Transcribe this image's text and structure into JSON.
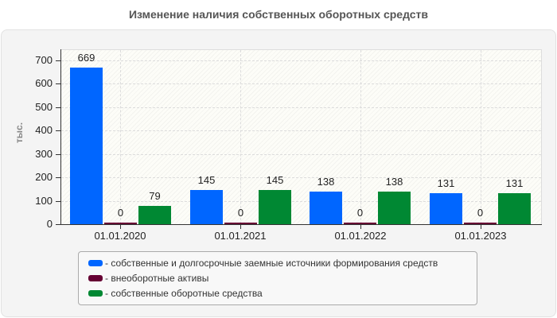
{
  "title": "Изменение наличия собственных оборотных средств",
  "chart_data": {
    "type": "bar",
    "title": "Изменение наличия собственных оборотных средств",
    "xlabel": "",
    "ylabel": "тыс.",
    "ylim": [
      0,
      750
    ],
    "yticks": [
      0,
      100,
      200,
      300,
      400,
      500,
      600,
      700
    ],
    "categories": [
      "01.01.2020",
      "01.01.2021",
      "01.01.2022",
      "01.01.2023"
    ],
    "series": [
      {
        "name": "собственные и долгосрочные заемные источники формирования средств",
        "color": "#0066ff",
        "values": [
          669,
          145,
          138,
          131
        ]
      },
      {
        "name": "внеоборотные активы",
        "color": "#660033",
        "values": [
          0,
          0,
          0,
          0
        ]
      },
      {
        "name": "собственные оборотные средства",
        "color": "#008833",
        "values": [
          79,
          145,
          138,
          131
        ]
      }
    ],
    "grid": true,
    "legend_position": "bottom"
  },
  "legend": {
    "items": [
      "- собственные и долгосрочные заемные источники формирования средств",
      "- внеоборотные активы",
      "- собственные оборотные средства"
    ]
  }
}
